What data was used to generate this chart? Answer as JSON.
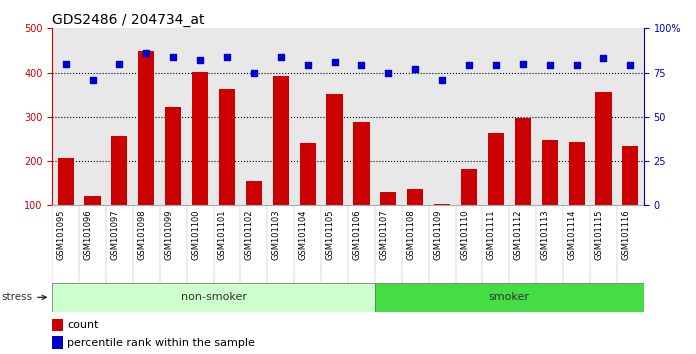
{
  "title": "GDS2486 / 204734_at",
  "samples": [
    "GSM101095",
    "GSM101096",
    "GSM101097",
    "GSM101098",
    "GSM101099",
    "GSM101100",
    "GSM101101",
    "GSM101102",
    "GSM101103",
    "GSM101104",
    "GSM101105",
    "GSM101106",
    "GSM101107",
    "GSM101108",
    "GSM101109",
    "GSM101110",
    "GSM101111",
    "GSM101112",
    "GSM101113",
    "GSM101114",
    "GSM101115",
    "GSM101116"
  ],
  "counts": [
    207,
    122,
    257,
    449,
    323,
    401,
    362,
    155,
    393,
    240,
    352,
    289,
    131,
    136,
    104,
    181,
    264,
    297,
    248,
    244,
    357,
    235
  ],
  "percentile_ranks": [
    80,
    71,
    80,
    86,
    84,
    82,
    84,
    75,
    84,
    79,
    81,
    79,
    75,
    77,
    71,
    79,
    79,
    80,
    79,
    79,
    83,
    79
  ],
  "non_smoker_count": 12,
  "smoker_count": 10,
  "ylim_left": [
    100,
    500
  ],
  "ylim_right": [
    0,
    100
  ],
  "yticks_left": [
    100,
    200,
    300,
    400,
    500
  ],
  "yticks_right": [
    0,
    25,
    50,
    75,
    100
  ],
  "ytick_labels_right": [
    "0",
    "25",
    "50",
    "75",
    "100%"
  ],
  "bar_color": "#cc0000",
  "dot_color": "#0000cc",
  "non_smoker_light_green": "#ccffcc",
  "non_smoker_text": "non-smoker",
  "smoker_green": "#44dd44",
  "smoker_text": "smoker",
  "stress_label": "stress",
  "legend_count_label": "count",
  "legend_pct_label": "percentile rank within the sample",
  "bar_width": 0.6,
  "title_fontsize": 10,
  "axis_tick_fontsize": 7,
  "label_fontsize": 8,
  "plot_bg": "#e8e8e8"
}
